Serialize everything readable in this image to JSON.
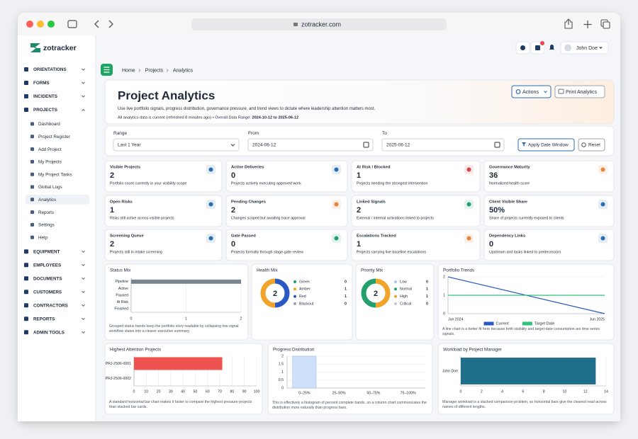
{
  "browser": {
    "url": "zotracker.com"
  },
  "sidebar": {
    "logo": "zotracker",
    "items": [
      {
        "label": "ORIENTATIONS"
      },
      {
        "label": "FORMS"
      },
      {
        "label": "INCIDENTS"
      },
      {
        "label": "PROJECTS",
        "children": [
          "Dashboard",
          "Project Register",
          "Add Project",
          "My Projects",
          "My Project Tasks",
          "Global Logs",
          "Analytics",
          "Reports",
          "Settings",
          "Help"
        ]
      },
      {
        "label": "EQUIPMENT"
      },
      {
        "label": "EMPLOYEES"
      },
      {
        "label": "DOCUMENTS"
      },
      {
        "label": "CUSTOMERS"
      },
      {
        "label": "CONTRACTORS"
      },
      {
        "label": "REPORTS"
      },
      {
        "label": "ADMIN TOOLS"
      }
    ]
  },
  "topbar": {
    "user": "John Doe"
  },
  "breadcrumb": [
    "Home",
    "Projects",
    "Analytics"
  ],
  "header": {
    "title": "Project Analytics",
    "subtitle": "Use live portfolio signals, progress distribution, governance pressure, and trend views to dictate where leadership attention matters most.",
    "meta": "All analytics data is current (refreshed 8 minutes ago) • Overall Data Range:",
    "meta_range": "2024-10-12 to 2025-06-12",
    "actions": "Actions",
    "print": "Print Analytics"
  },
  "filters": {
    "range_label": "Range",
    "range_value": "Last 1 Year",
    "from_label": "From",
    "from_value": "2024-06-12",
    "to_label": "To",
    "to_value": "2025-06-12",
    "apply": "Apply Date Window",
    "reset": "Reset"
  },
  "kpis": [
    {
      "label": "Visible Projects",
      "value": "2",
      "desc": "Portfolio count currently in your visibility scope"
    },
    {
      "label": "Active Deliveries",
      "value": "0",
      "desc": "Projects actively executing approved work"
    },
    {
      "label": "At Risk / Blocked",
      "value": "1",
      "desc": "Projects needing the strongest intervention"
    },
    {
      "label": "Governance Maturity",
      "value": "36",
      "desc": "Normalized health score"
    },
    {
      "label": "Open Risks",
      "value": "1",
      "desc": "Risks still active across visible projects"
    },
    {
      "label": "Pending Changes",
      "value": "2",
      "desc": "Changes scoped but awaiting trace approval"
    },
    {
      "label": "Linked Signals",
      "value": "2",
      "desc": "External / internal activations linked to projects"
    },
    {
      "label": "Client Visible Share",
      "value": "50%",
      "desc": "Share of projects currently exposed to clients"
    },
    {
      "label": "Screening Queue",
      "value": "2",
      "desc": "Projects still in intake screening"
    },
    {
      "label": "Gate Passed",
      "value": "0",
      "desc": "Projects formally through stage-gate review"
    },
    {
      "label": "Escalations Tracked",
      "value": "1",
      "desc": "Projects carrying live baseline escalations"
    },
    {
      "label": "Dependency Links",
      "value": "0",
      "desc": "Upstream and tasks linked to predecessors"
    }
  ],
  "chart_data": [
    {
      "type": "hbar",
      "title": "Status Mix",
      "categories": [
        "Pipeline",
        "Active",
        "Paused",
        "At Risk",
        "Finished"
      ],
      "values": [
        2,
        0,
        0,
        0,
        0
      ],
      "color": "#7b8591",
      "xlim": [
        0,
        2
      ],
      "xticks": [
        0,
        1,
        2
      ],
      "grid": true,
      "note": "Grouped status bands keep the portfolio story readable by collapsing low-signal workflow states into a clearer executive summary."
    },
    {
      "type": "donut",
      "title": "Health Mix",
      "total": 2,
      "categories": [
        "Green",
        "Amber",
        "Red",
        "Blackout"
      ],
      "values": [
        0,
        1,
        1,
        0
      ],
      "colors": [
        "#22a06b",
        "#f0a429",
        "#2b59c3",
        "#9aa0a6"
      ]
    },
    {
      "type": "donut",
      "title": "Priority Mix",
      "total": 2,
      "categories": [
        "Low",
        "Normal",
        "High",
        "Critical"
      ],
      "values": [
        0,
        1,
        1,
        0
      ],
      "colors": [
        "#a9c6ef",
        "#22a06b",
        "#f0a429",
        "#c3c7cd"
      ]
    },
    {
      "type": "line",
      "title": "Portfolio Trends",
      "x": [
        "Jun 2024",
        "Jun 2025"
      ],
      "series": [
        {
          "name": "Current",
          "color": "#2b59c3",
          "values": [
            2,
            0
          ]
        },
        {
          "name": "Target Date",
          "color": "#2ec27e",
          "values": [
            1,
            1
          ]
        }
      ],
      "ylim": [
        0,
        2
      ],
      "yticks": [
        0,
        1,
        2
      ],
      "grid": true,
      "note": "A line chart is a better fit here because both visibility and target-date consumption are time series signals."
    },
    {
      "type": "hbar",
      "title": "Highest Attention Projects",
      "categories": [
        "PRJ-2506-0001",
        "PRJ-2506-0002"
      ],
      "values": [
        72,
        0
      ],
      "color": "#ef5350",
      "xlim": [
        0,
        100
      ],
      "xticks": [
        0,
        10,
        20,
        30,
        40,
        50,
        60,
        70,
        80,
        90,
        100
      ],
      "grid": true,
      "note": "A standard horizontal bar chart makes it faster to compare the highest pressure projects than stacked bar cards."
    },
    {
      "type": "column",
      "title": "Progress Distribution",
      "categories": [
        "0–25%",
        "25–50%",
        "50–75%",
        "75–100%"
      ],
      "values": [
        2,
        0,
        0,
        0
      ],
      "color": "#cfe0fb",
      "ylim": [
        0,
        2
      ],
      "yticks": [
        0,
        0.5,
        1,
        1.5,
        2
      ],
      "grid": true,
      "note": "This is effectively a histogram of percent complete bands, so a column chart communicates the distribution more naturally than progress bars."
    },
    {
      "type": "hbar",
      "title": "Workload by Project Manager",
      "categories": [
        "John Doe"
      ],
      "values": [
        13
      ],
      "color": "#1f6f8b",
      "xlim": [
        0,
        14
      ],
      "xticks": [
        0,
        2,
        4,
        6,
        8,
        10,
        12,
        14
      ],
      "grid": true,
      "note": "Manager workload is a stacked comparison problem, so horizontal bars give the clearest read across names of different lengths."
    }
  ]
}
